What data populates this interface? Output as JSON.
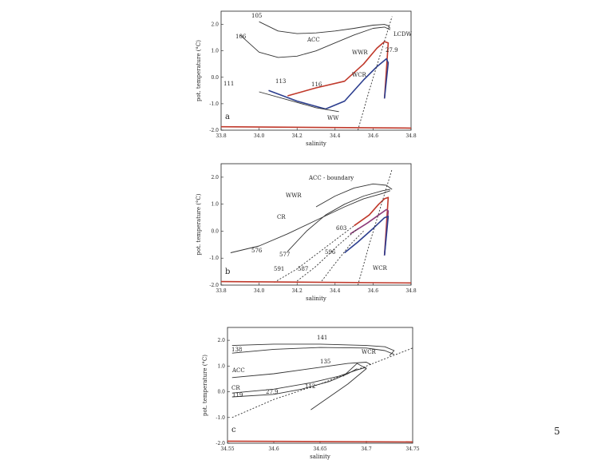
{
  "page_number": "5",
  "chart_data": [
    {
      "type": "line",
      "panel": "a",
      "xlabel": "salinity",
      "ylabel": "pot. temperature (°C)",
      "xlim": [
        33.8,
        34.8
      ],
      "ylim": [
        -2.0,
        2.5
      ],
      "xticks": [
        "33.8",
        "34.0",
        "34.2",
        "34.4",
        "34.6",
        "34.8"
      ],
      "yticks": [
        "-2.0",
        "-1.0",
        "0.0",
        "1.0",
        "2.0"
      ],
      "annotations": [
        "105",
        "106",
        "ACC",
        "LCDW",
        "WWR",
        "WCR",
        "WW",
        "111",
        "113",
        "116",
        "27.9"
      ],
      "series": [
        {
          "label": "105",
          "color": "#333333",
          "x": [
            34.0,
            34.1,
            34.2,
            34.3,
            34.4,
            34.5,
            34.6,
            34.66,
            34.68,
            34.69
          ],
          "y": [
            2.1,
            1.75,
            1.65,
            1.68,
            1.75,
            1.85,
            1.97,
            2.0,
            1.95,
            1.85
          ]
        },
        {
          "label": "106",
          "color": "#333333",
          "x": [
            33.9,
            34.0,
            34.1,
            34.2,
            34.3,
            34.4,
            34.5,
            34.6,
            34.66,
            34.69
          ],
          "y": [
            1.6,
            0.95,
            0.75,
            0.8,
            1.0,
            1.3,
            1.6,
            1.85,
            1.9,
            1.8
          ]
        },
        {
          "label": "WWR",
          "color": "#c0392b",
          "x": [
            34.15,
            34.3,
            34.45,
            34.55,
            34.62,
            34.66,
            34.68,
            34.66
          ],
          "y": [
            -0.7,
            -0.4,
            -0.15,
            0.5,
            1.1,
            1.35,
            1.3,
            -0.8
          ]
        },
        {
          "label": "WCR",
          "color": "#2c3e8f",
          "x": [
            34.05,
            34.2,
            34.35,
            34.45,
            34.55,
            34.62,
            34.67,
            34.68,
            34.66
          ],
          "y": [
            -0.5,
            -0.9,
            -1.2,
            -0.9,
            -0.1,
            0.4,
            0.7,
            0.55,
            -0.8
          ]
        },
        {
          "label": "WW",
          "color": "#333333",
          "x": [
            34.0,
            34.15,
            34.3,
            34.42
          ],
          "y": [
            -0.55,
            -0.85,
            -1.15,
            -1.3
          ]
        },
        {
          "label": "27.9",
          "color": "#333333",
          "dashed": true,
          "x": [
            34.52,
            34.58,
            34.64,
            34.7
          ],
          "y": [
            -2.0,
            -0.5,
            0.9,
            2.3
          ]
        },
        {
          "label": "freezing line",
          "color": "#c0392b",
          "x": [
            33.8,
            34.8
          ],
          "y": [
            -1.87,
            -1.92
          ]
        }
      ]
    },
    {
      "type": "line",
      "panel": "b",
      "xlabel": "salinity",
      "ylabel": "pot. temperature (°C)",
      "xlim": [
        33.8,
        34.8
      ],
      "ylim": [
        -2.0,
        2.5
      ],
      "xticks": [
        "33.8",
        "34.0",
        "34.2",
        "34.4",
        "34.6",
        "34.8"
      ],
      "yticks": [
        "-2.0",
        "-1.0",
        "0.0",
        "1.0",
        "2.0"
      ],
      "annotations": [
        "ACC - boundary",
        "WWR",
        "CR",
        "576",
        "577",
        "591",
        "587",
        "596",
        "603",
        "WCR"
      ],
      "series": [
        {
          "label": "576",
          "color": "#333333",
          "x": [
            33.85,
            34.0,
            34.15,
            34.3,
            34.45,
            34.55,
            34.65,
            34.69
          ],
          "y": [
            -0.8,
            -0.55,
            -0.1,
            0.4,
            0.9,
            1.2,
            1.4,
            1.5
          ]
        },
        {
          "label": "577",
          "color": "#333333",
          "x": [
            34.15,
            34.25,
            34.35,
            34.45,
            34.55,
            34.65,
            34.69
          ],
          "y": [
            -0.75,
            0.0,
            0.6,
            1.0,
            1.3,
            1.5,
            1.55
          ]
        },
        {
          "label": "ACC - boundary",
          "color": "#333333",
          "x": [
            34.3,
            34.4,
            34.5,
            34.6,
            34.67,
            34.7
          ],
          "y": [
            0.9,
            1.3,
            1.6,
            1.75,
            1.7,
            1.55
          ]
        },
        {
          "label": "WWR",
          "color": "#c0392b",
          "x": [
            34.5,
            34.58,
            34.63,
            34.66,
            34.68,
            34.66
          ],
          "y": [
            0.2,
            0.6,
            1.0,
            1.2,
            1.25,
            -0.9
          ]
        },
        {
          "label": "CR",
          "color": "#8e3a7a",
          "x": [
            34.48,
            34.57,
            34.63,
            34.67,
            34.68,
            34.66
          ],
          "y": [
            -0.1,
            0.3,
            0.6,
            0.8,
            0.75,
            -0.9
          ]
        },
        {
          "label": "WCR",
          "color": "#2c3e8f",
          "x": [
            34.45,
            34.52,
            34.6,
            34.66,
            34.68,
            34.66
          ],
          "y": [
            -0.8,
            -0.4,
            0.1,
            0.5,
            0.55,
            -0.9
          ]
        },
        {
          "label": "591",
          "color": "#333333",
          "dashed": true,
          "x": [
            34.08,
            34.2,
            34.35,
            34.5
          ],
          "y": [
            -1.9,
            -1.4,
            -0.6,
            0.2
          ]
        },
        {
          "label": "587",
          "color": "#333333",
          "dashed": true,
          "x": [
            34.2,
            34.3,
            34.42,
            34.52
          ],
          "y": [
            -1.85,
            -1.3,
            -0.5,
            0.1
          ]
        },
        {
          "label": "596",
          "color": "#333333",
          "dashed": true,
          "x": [
            34.33,
            34.4,
            34.48,
            34.55
          ],
          "y": [
            -1.85,
            -1.2,
            -0.5,
            0.0
          ]
        },
        {
          "label": "27.9",
          "color": "#333333",
          "dashed": true,
          "x": [
            34.52,
            34.58,
            34.64,
            34.7
          ],
          "y": [
            -2.0,
            -0.5,
            0.9,
            2.3
          ]
        },
        {
          "label": "freezing line",
          "color": "#c0392b",
          "x": [
            33.8,
            34.8
          ],
          "y": [
            -1.87,
            -1.92
          ]
        }
      ]
    },
    {
      "type": "line",
      "panel": "c",
      "xlabel": "salinity",
      "ylabel": "pot. temperature (°C)",
      "xlim": [
        34.55,
        34.75
      ],
      "ylim": [
        -2.0,
        2.5
      ],
      "xticks": [
        "34.55",
        "34.6",
        "34.65",
        "34.7",
        "34.75"
      ],
      "yticks": [
        "-2.0",
        "-1.0",
        "0.0",
        "1.0",
        "2.0"
      ],
      "annotations": [
        "141",
        "138",
        "ACC",
        "135",
        "CR",
        "119",
        "112",
        "WCR",
        "27.9",
        "27.9"
      ],
      "series": [
        {
          "label": "141",
          "color": "#333333",
          "x": [
            34.555,
            34.6,
            34.65,
            34.7,
            34.72,
            34.73,
            34.725
          ],
          "y": [
            1.8,
            1.85,
            1.85,
            1.8,
            1.75,
            1.6,
            1.4
          ]
        },
        {
          "label": "138",
          "color": "#333333",
          "x": [
            34.555,
            34.6,
            34.65,
            34.7,
            34.72,
            34.73
          ],
          "y": [
            1.5,
            1.65,
            1.72,
            1.7,
            1.6,
            1.45
          ]
        },
        {
          "label": "135",
          "color": "#333333",
          "x": [
            34.555,
            34.6,
            34.65,
            34.68,
            34.7,
            34.705
          ],
          "y": [
            0.55,
            0.7,
            0.95,
            1.1,
            1.15,
            1.05
          ]
        },
        {
          "label": "119",
          "color": "#333333",
          "x": [
            34.555,
            34.6,
            34.64,
            34.67,
            34.69,
            34.7
          ],
          "y": [
            -0.05,
            0.1,
            0.35,
            0.6,
            0.85,
            0.95
          ]
        },
        {
          "label": "112",
          "color": "#333333",
          "x": [
            34.555,
            34.6,
            34.63,
            34.66,
            34.68,
            34.69
          ],
          "y": [
            -0.2,
            -0.1,
            0.1,
            0.4,
            0.7,
            0.9
          ]
        },
        {
          "label": "WCR",
          "color": "#333333",
          "x": [
            34.64,
            34.66,
            34.68,
            34.7,
            34.69,
            34.675
          ],
          "y": [
            -0.7,
            -0.2,
            0.3,
            0.9,
            1.1,
            0.6
          ]
        },
        {
          "label": "27.9",
          "color": "#333333",
          "dashed": true,
          "x": [
            34.555,
            34.6,
            34.65,
            34.7,
            34.75
          ],
          "y": [
            -1.0,
            -0.3,
            0.3,
            1.0,
            1.7
          ]
        },
        {
          "label": "freezing line",
          "color": "#c0392b",
          "x": [
            34.55,
            34.75
          ],
          "y": [
            -1.92,
            -1.95
          ]
        }
      ]
    }
  ]
}
